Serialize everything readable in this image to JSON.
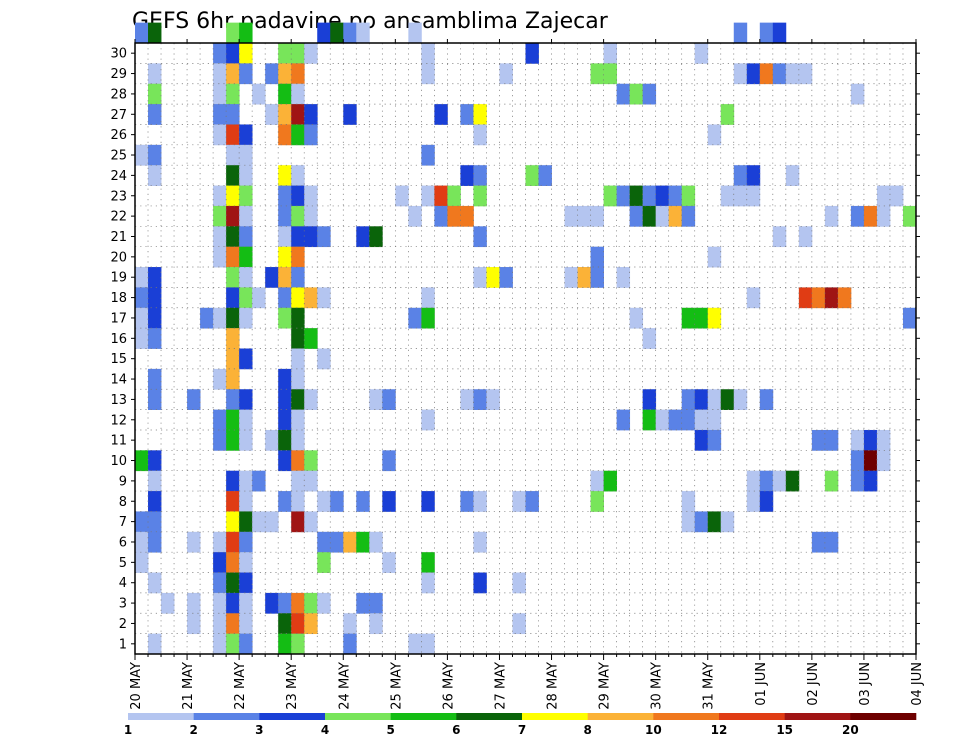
{
  "chart_data": {
    "type": "heatmap",
    "title": "GEFS 6hr padavine po ansamblima Zajecar",
    "xlabel": "",
    "ylabel": "",
    "grid": true,
    "legend_position": "bottom",
    "x_tick_labels": [
      "20 MAY",
      "21 MAY",
      "22 MAY",
      "23 MAY",
      "24 MAY",
      "25 MAY",
      "26 MAY",
      "27 MAY",
      "28 MAY",
      "29 MAY",
      "30 MAY",
      "31 MAY",
      "01 JUN",
      "02 JUN",
      "03 JUN",
      "04 JUN"
    ],
    "y_tick_labels": [
      "1",
      "2",
      "3",
      "4",
      "5",
      "6",
      "7",
      "8",
      "9",
      "10",
      "11",
      "12",
      "13",
      "14",
      "15",
      "16",
      "17",
      "18",
      "19",
      "20",
      "21",
      "22",
      "23",
      "24",
      "25",
      "26",
      "27",
      "28",
      "29",
      "30"
    ],
    "ylim": [
      0,
      30
    ],
    "steps_per_day": 4,
    "total_steps": 60,
    "legend": {
      "labels": [
        "1",
        "2",
        "3",
        "4",
        "5",
        "6",
        "7",
        "8",
        "10",
        "12",
        "15",
        "20"
      ],
      "colors": [
        "#b4c5f0",
        "#5a82e6",
        "#1a3fd6",
        "#78e55a",
        "#14bd14",
        "#0a640a",
        "#ffff00",
        "#fbb237",
        "#f0781e",
        "#e03c14",
        "#a01414",
        "#6e0000"
      ]
    },
    "cells": [
      [
        30,
        0,
        2
      ],
      [
        30,
        1,
        6
      ],
      [
        30,
        7,
        4
      ],
      [
        30,
        8,
        5
      ],
      [
        30,
        14,
        3
      ],
      [
        30,
        15,
        6
      ],
      [
        30,
        16,
        2
      ],
      [
        30,
        17,
        1
      ],
      [
        30,
        21,
        1
      ],
      [
        30,
        46,
        2
      ],
      [
        30,
        48,
        2
      ],
      [
        30,
        49,
        3
      ],
      [
        29,
        6,
        2
      ],
      [
        29,
        7,
        3
      ],
      [
        29,
        8,
        7
      ],
      [
        29,
        11,
        4
      ],
      [
        29,
        12,
        4
      ],
      [
        29,
        13,
        1
      ],
      [
        29,
        22,
        1
      ],
      [
        29,
        30,
        3
      ],
      [
        29,
        36,
        1
      ],
      [
        29,
        43,
        1
      ],
      [
        28,
        1,
        1
      ],
      [
        28,
        6,
        1
      ],
      [
        28,
        7,
        8
      ],
      [
        28,
        8,
        2
      ],
      [
        28,
        10,
        2
      ],
      [
        28,
        11,
        8
      ],
      [
        28,
        12,
        9
      ],
      [
        28,
        22,
        1
      ],
      [
        28,
        28,
        1
      ],
      [
        28,
        35,
        4
      ],
      [
        28,
        36,
        4
      ],
      [
        28,
        46,
        1
      ],
      [
        28,
        47,
        3
      ],
      [
        28,
        48,
        9
      ],
      [
        28,
        49,
        2
      ],
      [
        28,
        50,
        1
      ],
      [
        28,
        51,
        1
      ],
      [
        27,
        1,
        4
      ],
      [
        27,
        6,
        1
      ],
      [
        27,
        7,
        4
      ],
      [
        27,
        9,
        1
      ],
      [
        27,
        11,
        5
      ],
      [
        27,
        12,
        1
      ],
      [
        27,
        37,
        2
      ],
      [
        27,
        38,
        4
      ],
      [
        27,
        39,
        2
      ],
      [
        27,
        55,
        1
      ],
      [
        26,
        1,
        2
      ],
      [
        26,
        6,
        2
      ],
      [
        26,
        7,
        2
      ],
      [
        26,
        10,
        1
      ],
      [
        26,
        11,
        8
      ],
      [
        26,
        12,
        11
      ],
      [
        26,
        13,
        3
      ],
      [
        26,
        16,
        3
      ],
      [
        26,
        23,
        3
      ],
      [
        26,
        25,
        2
      ],
      [
        26,
        26,
        7
      ],
      [
        26,
        45,
        4
      ],
      [
        25,
        6,
        1
      ],
      [
        25,
        7,
        10
      ],
      [
        25,
        8,
        3
      ],
      [
        25,
        11,
        9
      ],
      [
        25,
        12,
        5
      ],
      [
        25,
        13,
        2
      ],
      [
        25,
        26,
        1
      ],
      [
        25,
        44,
        1
      ],
      [
        24,
        0,
        1
      ],
      [
        24,
        1,
        2
      ],
      [
        24,
        7,
        1
      ],
      [
        24,
        8,
        1
      ],
      [
        24,
        22,
        2
      ],
      [
        23,
        1,
        1
      ],
      [
        23,
        7,
        6
      ],
      [
        23,
        8,
        1
      ],
      [
        23,
        11,
        7
      ],
      [
        23,
        12,
        1
      ],
      [
        23,
        25,
        3
      ],
      [
        23,
        26,
        2
      ],
      [
        23,
        30,
        4
      ],
      [
        23,
        31,
        2
      ],
      [
        23,
        46,
        2
      ],
      [
        23,
        47,
        3
      ],
      [
        23,
        50,
        1
      ],
      [
        22,
        6,
        1
      ],
      [
        22,
        7,
        7
      ],
      [
        22,
        8,
        4
      ],
      [
        22,
        11,
        2
      ],
      [
        22,
        12,
        3
      ],
      [
        22,
        13,
        1
      ],
      [
        22,
        20,
        1
      ],
      [
        22,
        22,
        1
      ],
      [
        22,
        23,
        10
      ],
      [
        22,
        24,
        4
      ],
      [
        22,
        26,
        4
      ],
      [
        22,
        36,
        4
      ],
      [
        22,
        37,
        2
      ],
      [
        22,
        38,
        6
      ],
      [
        22,
        39,
        2
      ],
      [
        22,
        40,
        3
      ],
      [
        22,
        41,
        2
      ],
      [
        22,
        42,
        4
      ],
      [
        22,
        45,
        1
      ],
      [
        22,
        46,
        1
      ],
      [
        22,
        47,
        1
      ],
      [
        22,
        57,
        1
      ],
      [
        22,
        58,
        1
      ],
      [
        21,
        6,
        4
      ],
      [
        21,
        7,
        11
      ],
      [
        21,
        8,
        1
      ],
      [
        21,
        11,
        2
      ],
      [
        21,
        12,
        4
      ],
      [
        21,
        13,
        1
      ],
      [
        21,
        21,
        1
      ],
      [
        21,
        23,
        2
      ],
      [
        21,
        24,
        9
      ],
      [
        21,
        25,
        9
      ],
      [
        21,
        33,
        1
      ],
      [
        21,
        34,
        1
      ],
      [
        21,
        35,
        1
      ],
      [
        21,
        38,
        2
      ],
      [
        21,
        39,
        6
      ],
      [
        21,
        40,
        1
      ],
      [
        21,
        41,
        8
      ],
      [
        21,
        42,
        2
      ],
      [
        21,
        53,
        1
      ],
      [
        21,
        55,
        2
      ],
      [
        21,
        56,
        9
      ],
      [
        21,
        57,
        1
      ],
      [
        21,
        59,
        4
      ],
      [
        20,
        6,
        1
      ],
      [
        20,
        7,
        6
      ],
      [
        20,
        8,
        2
      ],
      [
        20,
        11,
        1
      ],
      [
        20,
        12,
        3
      ],
      [
        20,
        13,
        3
      ],
      [
        20,
        14,
        2
      ],
      [
        20,
        17,
        3
      ],
      [
        20,
        18,
        6
      ],
      [
        20,
        26,
        2
      ],
      [
        20,
        49,
        1
      ],
      [
        20,
        51,
        1
      ],
      [
        19,
        6,
        1
      ],
      [
        19,
        7,
        9
      ],
      [
        19,
        8,
        5
      ],
      [
        19,
        11,
        7
      ],
      [
        19,
        12,
        9
      ],
      [
        19,
        35,
        2
      ],
      [
        19,
        44,
        1
      ],
      [
        18,
        0,
        1
      ],
      [
        18,
        1,
        3
      ],
      [
        18,
        7,
        4
      ],
      [
        18,
        8,
        1
      ],
      [
        18,
        10,
        3
      ],
      [
        18,
        11,
        8
      ],
      [
        18,
        12,
        2
      ],
      [
        18,
        26,
        1
      ],
      [
        18,
        27,
        7
      ],
      [
        18,
        28,
        2
      ],
      [
        18,
        33,
        1
      ],
      [
        18,
        34,
        8
      ],
      [
        18,
        35,
        2
      ],
      [
        18,
        37,
        1
      ],
      [
        17,
        0,
        2
      ],
      [
        17,
        1,
        3
      ],
      [
        17,
        7,
        3
      ],
      [
        17,
        8,
        4
      ],
      [
        17,
        9,
        1
      ],
      [
        17,
        11,
        2
      ],
      [
        17,
        12,
        7
      ],
      [
        17,
        13,
        8
      ],
      [
        17,
        14,
        1
      ],
      [
        17,
        22,
        1
      ],
      [
        17,
        47,
        1
      ],
      [
        17,
        51,
        10
      ],
      [
        17,
        52,
        9
      ],
      [
        17,
        53,
        11
      ],
      [
        17,
        54,
        9
      ],
      [
        16,
        0,
        1
      ],
      [
        16,
        1,
        3
      ],
      [
        16,
        5,
        2
      ],
      [
        16,
        6,
        1
      ],
      [
        16,
        7,
        6
      ],
      [
        16,
        8,
        1
      ],
      [
        16,
        11,
        4
      ],
      [
        16,
        12,
        6
      ],
      [
        16,
        21,
        2
      ],
      [
        16,
        22,
        5
      ],
      [
        16,
        38,
        1
      ],
      [
        16,
        42,
        5
      ],
      [
        16,
        43,
        5
      ],
      [
        16,
        44,
        7
      ],
      [
        16,
        59,
        2
      ],
      [
        15,
        0,
        1
      ],
      [
        15,
        1,
        2
      ],
      [
        15,
        7,
        8
      ],
      [
        15,
        12,
        6
      ],
      [
        15,
        13,
        5
      ],
      [
        15,
        39,
        1
      ],
      [
        14,
        7,
        8
      ],
      [
        14,
        8,
        3
      ],
      [
        14,
        12,
        1
      ],
      [
        14,
        14,
        1
      ],
      [
        13,
        1,
        2
      ],
      [
        13,
        6,
        1
      ],
      [
        13,
        7,
        8
      ],
      [
        13,
        11,
        3
      ],
      [
        13,
        12,
        1
      ],
      [
        12,
        1,
        2
      ],
      [
        12,
        4,
        2
      ],
      [
        12,
        7,
        2
      ],
      [
        12,
        8,
        3
      ],
      [
        12,
        11,
        3
      ],
      [
        12,
        12,
        6
      ],
      [
        12,
        13,
        1
      ],
      [
        12,
        18,
        1
      ],
      [
        12,
        19,
        2
      ],
      [
        12,
        25,
        1
      ],
      [
        12,
        26,
        2
      ],
      [
        12,
        27,
        1
      ],
      [
        12,
        39,
        3
      ],
      [
        12,
        42,
        2
      ],
      [
        12,
        43,
        3
      ],
      [
        12,
        44,
        1
      ],
      [
        12,
        45,
        6
      ],
      [
        12,
        46,
        1
      ],
      [
        12,
        48,
        2
      ],
      [
        11,
        6,
        2
      ],
      [
        11,
        7,
        5
      ],
      [
        11,
        8,
        1
      ],
      [
        11,
        11,
        3
      ],
      [
        11,
        12,
        1
      ],
      [
        11,
        22,
        1
      ],
      [
        11,
        37,
        2
      ],
      [
        11,
        39,
        5
      ],
      [
        11,
        40,
        1
      ],
      [
        11,
        41,
        2
      ],
      [
        11,
        42,
        2
      ],
      [
        11,
        43,
        1
      ],
      [
        11,
        44,
        1
      ],
      [
        10,
        6,
        2
      ],
      [
        10,
        7,
        5
      ],
      [
        10,
        8,
        1
      ],
      [
        10,
        10,
        1
      ],
      [
        10,
        11,
        6
      ],
      [
        10,
        12,
        1
      ],
      [
        10,
        43,
        3
      ],
      [
        10,
        44,
        2
      ],
      [
        10,
        52,
        2
      ],
      [
        10,
        53,
        2
      ],
      [
        10,
        55,
        1
      ],
      [
        10,
        56,
        3
      ],
      [
        10,
        57,
        1
      ],
      [
        9,
        0,
        5
      ],
      [
        9,
        1,
        3
      ],
      [
        9,
        11,
        3
      ],
      [
        9,
        12,
        9
      ],
      [
        9,
        13,
        4
      ],
      [
        9,
        19,
        2
      ],
      [
        9,
        55,
        2
      ],
      [
        9,
        56,
        12
      ],
      [
        9,
        57,
        1
      ],
      [
        8,
        1,
        1
      ],
      [
        8,
        7,
        3
      ],
      [
        8,
        8,
        1
      ],
      [
        8,
        9,
        2
      ],
      [
        8,
        12,
        1
      ],
      [
        8,
        13,
        1
      ],
      [
        8,
        35,
        1
      ],
      [
        8,
        36,
        5
      ],
      [
        8,
        47,
        1
      ],
      [
        8,
        48,
        2
      ],
      [
        8,
        49,
        1
      ],
      [
        8,
        50,
        6
      ],
      [
        8,
        53,
        4
      ],
      [
        8,
        55,
        2
      ],
      [
        8,
        56,
        3
      ],
      [
        7,
        1,
        3
      ],
      [
        7,
        7,
        10
      ],
      [
        7,
        8,
        1
      ],
      [
        7,
        11,
        2
      ],
      [
        7,
        12,
        1
      ],
      [
        7,
        14,
        1
      ],
      [
        7,
        15,
        2
      ],
      [
        7,
        17,
        2
      ],
      [
        7,
        19,
        3
      ],
      [
        7,
        22,
        3
      ],
      [
        7,
        25,
        2
      ],
      [
        7,
        26,
        1
      ],
      [
        7,
        29,
        1
      ],
      [
        7,
        30,
        2
      ],
      [
        7,
        35,
        4
      ],
      [
        7,
        42,
        1
      ],
      [
        7,
        47,
        1
      ],
      [
        7,
        48,
        3
      ],
      [
        6,
        0,
        2
      ],
      [
        6,
        1,
        2
      ],
      [
        6,
        7,
        7
      ],
      [
        6,
        8,
        6
      ],
      [
        6,
        9,
        1
      ],
      [
        6,
        10,
        1
      ],
      [
        6,
        12,
        11
      ],
      [
        6,
        13,
        1
      ],
      [
        6,
        42,
        1
      ],
      [
        6,
        43,
        2
      ],
      [
        6,
        44,
        6
      ],
      [
        6,
        45,
        1
      ],
      [
        5,
        0,
        1
      ],
      [
        5,
        1,
        2
      ],
      [
        5,
        4,
        1
      ],
      [
        5,
        6,
        1
      ],
      [
        5,
        7,
        10
      ],
      [
        5,
        8,
        2
      ],
      [
        5,
        14,
        2
      ],
      [
        5,
        15,
        2
      ],
      [
        5,
        16,
        8
      ],
      [
        5,
        17,
        5
      ],
      [
        5,
        18,
        1
      ],
      [
        5,
        26,
        1
      ],
      [
        5,
        52,
        2
      ],
      [
        5,
        53,
        2
      ],
      [
        4,
        0,
        1
      ],
      [
        4,
        6,
        3
      ],
      [
        4,
        7,
        9
      ],
      [
        4,
        8,
        1
      ],
      [
        4,
        14,
        4
      ],
      [
        4,
        19,
        1
      ],
      [
        4,
        22,
        5
      ],
      [
        3,
        1,
        1
      ],
      [
        3,
        6,
        2
      ],
      [
        3,
        7,
        6
      ],
      [
        3,
        8,
        3
      ],
      [
        3,
        22,
        1
      ],
      [
        3,
        26,
        3
      ],
      [
        3,
        29,
        1
      ],
      [
        2,
        2,
        1
      ],
      [
        2,
        4,
        1
      ],
      [
        2,
        6,
        1
      ],
      [
        2,
        7,
        3
      ],
      [
        2,
        8,
        1
      ],
      [
        2,
        10,
        3
      ],
      [
        2,
        11,
        2
      ],
      [
        2,
        12,
        9
      ],
      [
        2,
        13,
        4
      ],
      [
        2,
        14,
        1
      ],
      [
        2,
        17,
        2
      ],
      [
        2,
        18,
        2
      ],
      [
        1,
        4,
        1
      ],
      [
        1,
        6,
        1
      ],
      [
        1,
        7,
        9
      ],
      [
        1,
        8,
        1
      ],
      [
        1,
        11,
        6
      ],
      [
        1,
        12,
        10
      ],
      [
        1,
        13,
        8
      ],
      [
        1,
        16,
        1
      ],
      [
        1,
        18,
        1
      ],
      [
        1,
        29,
        1
      ],
      [
        0,
        1,
        1
      ],
      [
        0,
        6,
        1
      ],
      [
        0,
        7,
        4
      ],
      [
        0,
        8,
        2
      ],
      [
        0,
        11,
        5
      ],
      [
        0,
        12,
        4
      ],
      [
        0,
        16,
        2
      ],
      [
        0,
        21,
        1
      ],
      [
        0,
        22,
        1
      ]
    ]
  }
}
